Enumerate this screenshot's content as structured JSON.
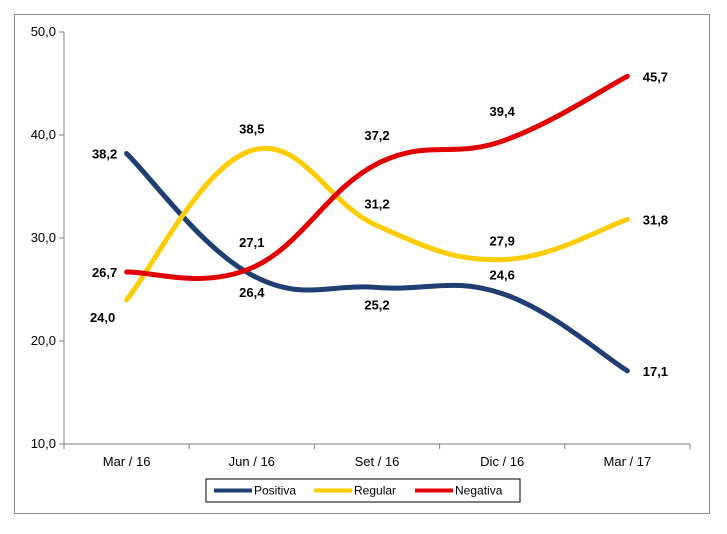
{
  "chart_data": {
    "type": "line",
    "categories": [
      "Mar / 16",
      "Jun / 16",
      "Set / 16",
      "Dic / 16",
      "Mar / 17"
    ],
    "ylim": [
      10,
      50
    ],
    "yticks": [
      "10,0",
      "20,0",
      "30,0",
      "40,0",
      "50,0"
    ],
    "grid": false,
    "legend_position": "bottom",
    "series": [
      {
        "name": "Positiva",
        "color": "#1f3f73",
        "values": [
          38.2,
          26.4,
          25.2,
          24.6,
          17.1
        ],
        "labels": [
          "38,2",
          "26,4",
          "25,2",
          "24,6",
          "17,1"
        ]
      },
      {
        "name": "Regular",
        "color": "#ffcc00",
        "values": [
          24.0,
          38.5,
          31.2,
          27.9,
          31.8
        ],
        "labels": [
          "24,0",
          "38,5",
          "31,2",
          "27,9",
          "31,8"
        ]
      },
      {
        "name": "Negativa",
        "color": "#e00000",
        "values": [
          26.7,
          27.1,
          37.2,
          39.4,
          45.7
        ],
        "labels": [
          "26,7",
          "27,1",
          "37,2",
          "39,4",
          "45,7"
        ]
      }
    ]
  }
}
